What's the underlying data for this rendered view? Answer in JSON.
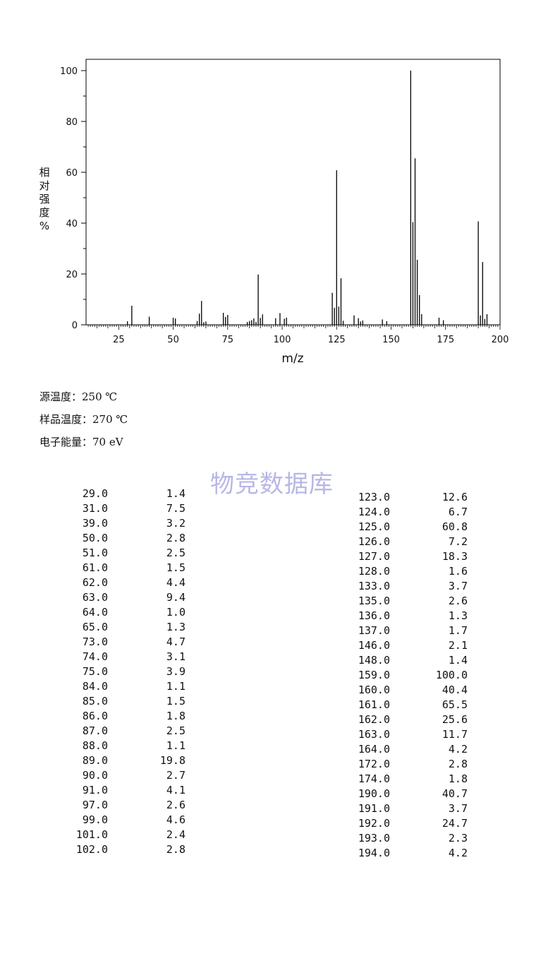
{
  "chart_data": {
    "type": "bar",
    "xlabel": "m/z",
    "ylabel": "相对强度%",
    "xlim": [
      10,
      200
    ],
    "ylim": [
      0,
      100
    ],
    "xticks": [
      25,
      50,
      75,
      100,
      125,
      150,
      175,
      200
    ],
    "yticks": [
      0,
      20,
      40,
      60,
      80,
      100
    ],
    "grid": false,
    "series": [
      {
        "x": [
          29,
          31,
          39,
          50,
          51,
          61,
          62,
          63,
          64,
          65,
          73,
          74,
          75,
          84,
          85,
          86,
          87,
          88,
          89,
          90,
          91,
          97,
          99,
          101,
          102,
          123,
          124,
          125,
          126,
          127,
          128,
          133,
          135,
          136,
          137,
          146,
          148,
          159,
          160,
          161,
          162,
          163,
          164,
          172,
          174,
          190,
          191,
          192,
          193,
          194
        ],
        "values": [
          1.4,
          7.5,
          3.2,
          2.8,
          2.5,
          1.5,
          4.4,
          9.4,
          1.0,
          1.3,
          4.7,
          3.1,
          3.9,
          1.1,
          1.5,
          1.8,
          2.5,
          1.1,
          19.8,
          2.7,
          4.1,
          2.6,
          4.6,
          2.4,
          2.8,
          12.6,
          6.7,
          60.8,
          7.2,
          18.3,
          1.6,
          3.7,
          2.6,
          1.3,
          1.7,
          2.1,
          1.4,
          100.0,
          40.4,
          65.5,
          25.6,
          11.7,
          4.2,
          2.8,
          1.8,
          40.7,
          3.7,
          24.7,
          2.3,
          4.2
        ]
      }
    ]
  },
  "conditions": [
    "源温度：250 ℃",
    "样品温度：270 ℃",
    "电子能量：70 eV"
  ],
  "watermark": "物竞数据库",
  "peak_table": {
    "left": [
      [
        "29.0",
        "1.4"
      ],
      [
        "31.0",
        "7.5"
      ],
      [
        "39.0",
        "3.2"
      ],
      [
        "50.0",
        "2.8"
      ],
      [
        "51.0",
        "2.5"
      ],
      [
        "61.0",
        "1.5"
      ],
      [
        "62.0",
        "4.4"
      ],
      [
        "63.0",
        "9.4"
      ],
      [
        "64.0",
        "1.0"
      ],
      [
        "65.0",
        "1.3"
      ],
      [
        "73.0",
        "4.7"
      ],
      [
        "74.0",
        "3.1"
      ],
      [
        "75.0",
        "3.9"
      ],
      [
        "84.0",
        "1.1"
      ],
      [
        "85.0",
        "1.5"
      ],
      [
        "86.0",
        "1.8"
      ],
      [
        "87.0",
        "2.5"
      ],
      [
        "88.0",
        "1.1"
      ],
      [
        "89.0",
        "19.8"
      ],
      [
        "90.0",
        "2.7"
      ],
      [
        "91.0",
        "4.1"
      ],
      [
        "97.0",
        "2.6"
      ],
      [
        "99.0",
        "4.6"
      ],
      [
        "101.0",
        "2.4"
      ],
      [
        "102.0",
        "2.8"
      ]
    ],
    "right": [
      [
        "123.0",
        "12.6"
      ],
      [
        "124.0",
        "6.7"
      ],
      [
        "125.0",
        "60.8"
      ],
      [
        "126.0",
        "7.2"
      ],
      [
        "127.0",
        "18.3"
      ],
      [
        "128.0",
        "1.6"
      ],
      [
        "133.0",
        "3.7"
      ],
      [
        "135.0",
        "2.6"
      ],
      [
        "136.0",
        "1.3"
      ],
      [
        "137.0",
        "1.7"
      ],
      [
        "146.0",
        "2.1"
      ],
      [
        "148.0",
        "1.4"
      ],
      [
        "159.0",
        "100.0"
      ],
      [
        "160.0",
        "40.4"
      ],
      [
        "161.0",
        "65.5"
      ],
      [
        "162.0",
        "25.6"
      ],
      [
        "163.0",
        "11.7"
      ],
      [
        "164.0",
        "4.2"
      ],
      [
        "172.0",
        "2.8"
      ],
      [
        "174.0",
        "1.8"
      ],
      [
        "190.0",
        "40.7"
      ],
      [
        "191.0",
        "3.7"
      ],
      [
        "192.0",
        "24.7"
      ],
      [
        "193.0",
        "2.3"
      ],
      [
        "194.0",
        "4.2"
      ]
    ]
  }
}
